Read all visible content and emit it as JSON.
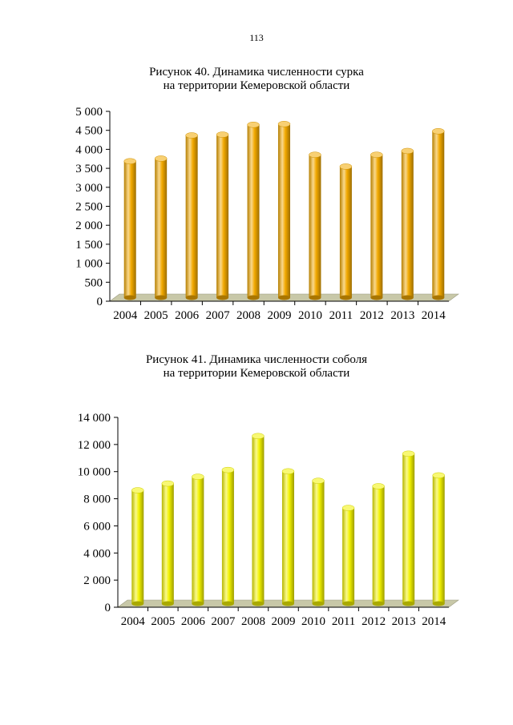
{
  "page_number": "113",
  "colors": {
    "marmot_bar": "#f2a900",
    "sable_bar": "#f2f200",
    "floor": "#c8c8a8",
    "axis": "#000000"
  },
  "chart_data": [
    {
      "type": "bar",
      "title_line1": "Рисунок 40. Динамика численности сурка",
      "title_line2": "на территории Кемеровской области",
      "categories": [
        "2004",
        "2005",
        "2006",
        "2007",
        "2008",
        "2009",
        "2010",
        "2011",
        "2012",
        "2013",
        "2014"
      ],
      "values": [
        3750,
        3820,
        4430,
        4450,
        4710,
        4730,
        3920,
        3610,
        3920,
        4020,
        4540
      ],
      "ylim": [
        0,
        5000
      ],
      "yticks": [
        0,
        500,
        1000,
        1500,
        2000,
        2500,
        3000,
        3500,
        4000,
        4500,
        5000
      ],
      "ytick_labels": [
        "0",
        "500",
        "1 000",
        "1 500",
        "2 000",
        "2 500",
        "3 000",
        "3 500",
        "4 000",
        "4 500",
        "5 000"
      ],
      "xlabel": "",
      "ylabel": ""
    },
    {
      "type": "bar",
      "title_line1": "Рисунок 41. Динамика численности соболя",
      "title_line2": "на территории Кемеровской области",
      "categories": [
        "2004",
        "2005",
        "2006",
        "2007",
        "2008",
        "2009",
        "2010",
        "2011",
        "2012",
        "2013",
        "2014"
      ],
      "values": [
        8800,
        9300,
        9800,
        10300,
        12800,
        10200,
        9500,
        7500,
        9100,
        11500,
        9900
      ],
      "ylim": [
        0,
        14000
      ],
      "yticks": [
        0,
        2000,
        4000,
        6000,
        8000,
        10000,
        12000,
        14000
      ],
      "ytick_labels": [
        "0",
        "2 000",
        "4 000",
        "6 000",
        "8 000",
        "10 000",
        "12 000",
        "14 000"
      ],
      "xlabel": "",
      "ylabel": ""
    }
  ]
}
